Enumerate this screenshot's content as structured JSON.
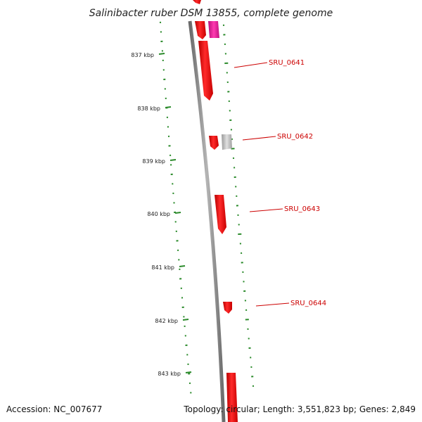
{
  "title": "Salinibacter ruber DSM 13855, complete genome",
  "accession": "Accession: NC_007677",
  "summary": "Topology: circular; Length: 3,551,823 bp; Genes: 2,849",
  "ticks": [
    {
      "label": "837 kbp"
    },
    {
      "label": "838 kbp"
    },
    {
      "label": "839 kbp"
    },
    {
      "label": "840 kbp"
    },
    {
      "label": "841 kbp"
    },
    {
      "label": "842 kbp"
    },
    {
      "label": "843 kbp"
    }
  ],
  "gene_labels": [
    {
      "name": "SRU_0641"
    },
    {
      "name": "SRU_0642"
    },
    {
      "name": "SRU_0643"
    },
    {
      "name": "SRU_0644"
    }
  ],
  "colors": {
    "backbone": "#8c8c8c",
    "gene_red": "#ee1111",
    "gene_pink": "#e8189a",
    "gene_grey": "#bdbdbd",
    "gc_dots": "#2a8a2a",
    "label_red": "#cc0000"
  }
}
